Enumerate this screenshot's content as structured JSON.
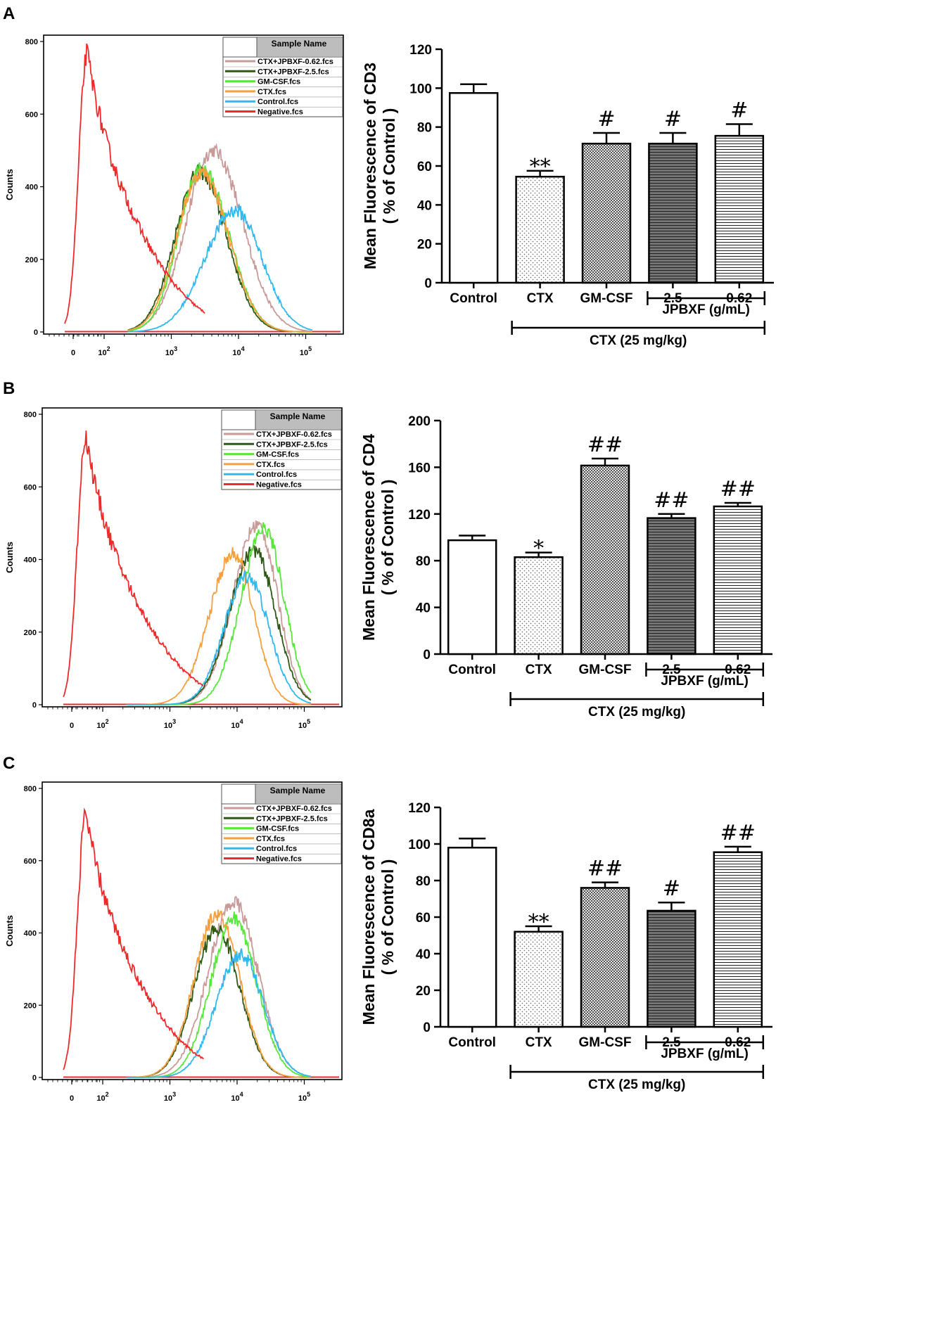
{
  "colors": {
    "ctx_jpbxf_062": "#c89a9a",
    "ctx_jpbxf_25": "#2f5a16",
    "gm_csf": "#59e63d",
    "ctx": "#f5a040",
    "control": "#2fb9ec",
    "negative": "#ee2b2b"
  },
  "panels": [
    {
      "letter": "A",
      "histogram": {
        "ylabel": "Counts",
        "yticks": [
          "0",
          "200",
          "400",
          "600",
          "800"
        ],
        "xticks": [
          {
            "base": "0",
            "exp": ""
          },
          {
            "base": "10",
            "exp": "2"
          },
          {
            "base": "10",
            "exp": "3"
          },
          {
            "base": "10",
            "exp": "4"
          },
          {
            "base": "10",
            "exp": "5"
          }
        ],
        "legend_header": "Sample Name",
        "legend": [
          "CTX+JPBXF-0.62.fcs",
          "CTX+JPBXF-2.5.fcs",
          "GM-CSF.fcs",
          "CTX.fcs",
          "Control.fcs",
          "Negative.fcs"
        ]
      },
      "chart_data": {
        "type": "bar",
        "ylabel_line1": "Mean Fluorescence of CD3",
        "ylabel_line2": "( % of Control )",
        "ylim": [
          0,
          120
        ],
        "yticks": [
          "0",
          "20",
          "40",
          "60",
          "80",
          "100",
          "120"
        ],
        "categories": [
          "Control",
          "CTX",
          "GM-CSF",
          "2.5",
          "0.62"
        ],
        "values": [
          97.5,
          54.5,
          71.5,
          71.5,
          75.5
        ],
        "errors": [
          4.5,
          3,
          5.5,
          5.5,
          6
        ],
        "significance": [
          "",
          "**",
          "#",
          "#",
          "#"
        ],
        "group_sub": "JPBXF (g/mL)",
        "group_main": "CTX (25 mg/kg)"
      }
    },
    {
      "letter": "B",
      "histogram": {
        "ylabel": "Counts",
        "yticks": [
          "0",
          "200",
          "400",
          "600",
          "800"
        ],
        "xticks": [
          {
            "base": "0",
            "exp": ""
          },
          {
            "base": "10",
            "exp": "2"
          },
          {
            "base": "10",
            "exp": "3"
          },
          {
            "base": "10",
            "exp": "4"
          },
          {
            "base": "10",
            "exp": "5"
          }
        ],
        "legend_header": "Sample Name",
        "legend": [
          "CTX+JPBXF-0.62.fcs",
          "CTX+JPBXF-2.5.fcs",
          "GM-CSF.fcs",
          "CTX.fcs",
          "Control.fcs",
          "Negative.fcs"
        ]
      },
      "chart_data": {
        "type": "bar",
        "ylabel_line1": "Mean Fluorescence of CD4",
        "ylabel_line2": "( % of Control )",
        "ylim": [
          0,
          200
        ],
        "yticks": [
          "0",
          "40",
          "80",
          "120",
          "160",
          "200"
        ],
        "categories": [
          "Control",
          "CTX",
          "GM-CSF",
          "2.5",
          "0.62"
        ],
        "values": [
          97.5,
          83,
          161.5,
          116.5,
          126.5
        ],
        "errors": [
          4,
          4,
          6,
          3.5,
          3
        ],
        "significance": [
          "",
          "*",
          "##",
          "##",
          "##"
        ],
        "group_sub": "JPBXF (g/mL)",
        "group_main": "CTX (25 mg/kg)"
      }
    },
    {
      "letter": "C",
      "histogram": {
        "ylabel": "Counts",
        "yticks": [
          "0",
          "200",
          "400",
          "600",
          "800"
        ],
        "xticks": [
          {
            "base": "0",
            "exp": ""
          },
          {
            "base": "10",
            "exp": "2"
          },
          {
            "base": "10",
            "exp": "3"
          },
          {
            "base": "10",
            "exp": "4"
          },
          {
            "base": "10",
            "exp": "5"
          }
        ],
        "legend_header": "Sample Name",
        "legend": [
          "CTX+JPBXF-0.62.fcs",
          "CTX+JPBXF-2.5.fcs",
          "GM-CSF.fcs",
          "CTX.fcs",
          "Control.fcs",
          "Negative.fcs"
        ]
      },
      "chart_data": {
        "type": "bar",
        "ylabel_line1": "Mean Fluorescence of CD8a",
        "ylabel_line2": "( % of Control )",
        "ylim": [
          0,
          120
        ],
        "yticks": [
          "0",
          "20",
          "40",
          "60",
          "80",
          "100",
          "120"
        ],
        "categories": [
          "Control",
          "CTX",
          "GM-CSF",
          "2.5",
          "0.62"
        ],
        "values": [
          98,
          52,
          76,
          63.5,
          95.5
        ],
        "errors": [
          5,
          3,
          3,
          4.5,
          3
        ],
        "significance": [
          "",
          "**",
          "##",
          "#",
          "##"
        ],
        "group_sub": "JPBXF (g/mL)",
        "group_main": "CTX (25 mg/kg)"
      }
    }
  ]
}
